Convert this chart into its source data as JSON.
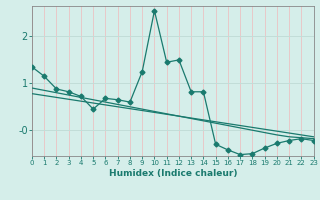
{
  "xlabel": "Humidex (Indice chaleur)",
  "bg_color": "#d5eeea",
  "grid_color_h": "#c2ddd8",
  "grid_color_v": "#e8c8c8",
  "line_color": "#1a7a6e",
  "xlim": [
    0,
    23
  ],
  "ylim": [
    -0.55,
    2.65
  ],
  "yticks": [
    0.0,
    1.0,
    2.0
  ],
  "ytick_labels": [
    "-0",
    "1",
    "2"
  ],
  "xticks": [
    0,
    1,
    2,
    3,
    4,
    5,
    6,
    7,
    8,
    9,
    10,
    11,
    12,
    13,
    14,
    15,
    16,
    17,
    18,
    19,
    20,
    21,
    22,
    23
  ],
  "s1_x": [
    0,
    1,
    2,
    3,
    4,
    5,
    6,
    7,
    8,
    9,
    10,
    11,
    12,
    13,
    14,
    15,
    16,
    17,
    18,
    19,
    20,
    21,
    22,
    23
  ],
  "s1_y": [
    1.35,
    1.15,
    0.88,
    0.82,
    0.72,
    0.45,
    0.68,
    0.65,
    0.6,
    1.25,
    2.55,
    1.45,
    1.5,
    0.82,
    0.82,
    -0.3,
    -0.42,
    -0.52,
    -0.5,
    -0.38,
    -0.28,
    -0.22,
    -0.18,
    -0.22
  ],
  "s2_x": [
    0,
    1,
    2,
    3,
    4,
    5,
    6,
    7,
    8,
    9,
    10,
    11,
    12,
    13,
    14,
    15,
    16,
    17,
    18,
    19,
    20,
    21,
    22,
    23
  ],
  "s2_y": [
    0.9,
    0.85,
    0.8,
    0.75,
    0.7,
    0.65,
    0.6,
    0.55,
    0.5,
    0.45,
    0.4,
    0.35,
    0.3,
    0.25,
    0.2,
    0.15,
    0.1,
    0.05,
    0.0,
    -0.05,
    -0.1,
    -0.14,
    -0.16,
    -0.18
  ],
  "s3_x": [
    0,
    1,
    2,
    3,
    4,
    5,
    6,
    7,
    8,
    9,
    10,
    11,
    12,
    13,
    14,
    15,
    16,
    17,
    18,
    19,
    20,
    21,
    22,
    23
  ],
  "s3_y": [
    0.78,
    0.74,
    0.7,
    0.66,
    0.62,
    0.58,
    0.54,
    0.5,
    0.46,
    0.42,
    0.38,
    0.34,
    0.3,
    0.26,
    0.22,
    0.18,
    0.14,
    0.1,
    0.06,
    0.02,
    -0.02,
    -0.06,
    -0.1,
    -0.14
  ]
}
